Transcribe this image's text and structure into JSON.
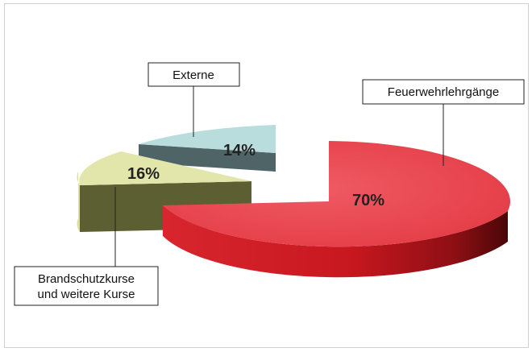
{
  "chart_data": {
    "type": "pie",
    "title": "",
    "slices": [
      {
        "label": "Feuerwehrlehrgänge",
        "value": 70,
        "value_label": "70%",
        "color": "#e84a55"
      },
      {
        "label": "Brandschutzkurse und weitere Kurse",
        "label_lines": [
          "Brandschutzkurse",
          "und weitere Kurse"
        ],
        "value": 16,
        "value_label": "16%",
        "color": "#e3e6aa"
      },
      {
        "label": "Externe",
        "value": 14,
        "value_label": "14%",
        "color": "#b9dcdc"
      }
    ],
    "style": "3d-exploded"
  }
}
